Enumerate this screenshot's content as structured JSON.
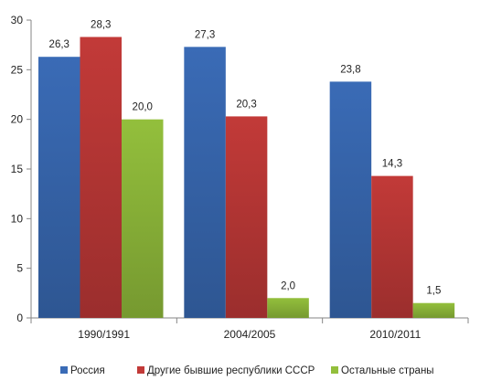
{
  "chart_data": {
    "type": "bar",
    "categories": [
      "1990/1991",
      "2004/2005",
      "2010/2011"
    ],
    "series": [
      {
        "name": "Россия",
        "values": [
          26.3,
          27.3,
          23.8
        ],
        "labels": [
          "26,3",
          "27,3",
          "23,8"
        ],
        "color": "#3a6bb6"
      },
      {
        "name": "Другие бывшие республики СССР",
        "values": [
          28.3,
          20.3,
          14.3
        ],
        "labels": [
          "28,3",
          "20,3",
          "14,3"
        ],
        "color": "#c23a38"
      },
      {
        "name": "Остальные страны",
        "values": [
          20.0,
          2.0,
          1.5
        ],
        "labels": [
          "20,0",
          "2,0",
          "1,5"
        ],
        "color": "#93bf3c"
      }
    ],
    "ylim": [
      0,
      30
    ],
    "yticks": [
      "0",
      "5",
      "10",
      "15",
      "20",
      "25",
      "30"
    ],
    "grid": false,
    "legend": "bottom",
    "title": "",
    "xlabel": "",
    "ylabel": ""
  }
}
